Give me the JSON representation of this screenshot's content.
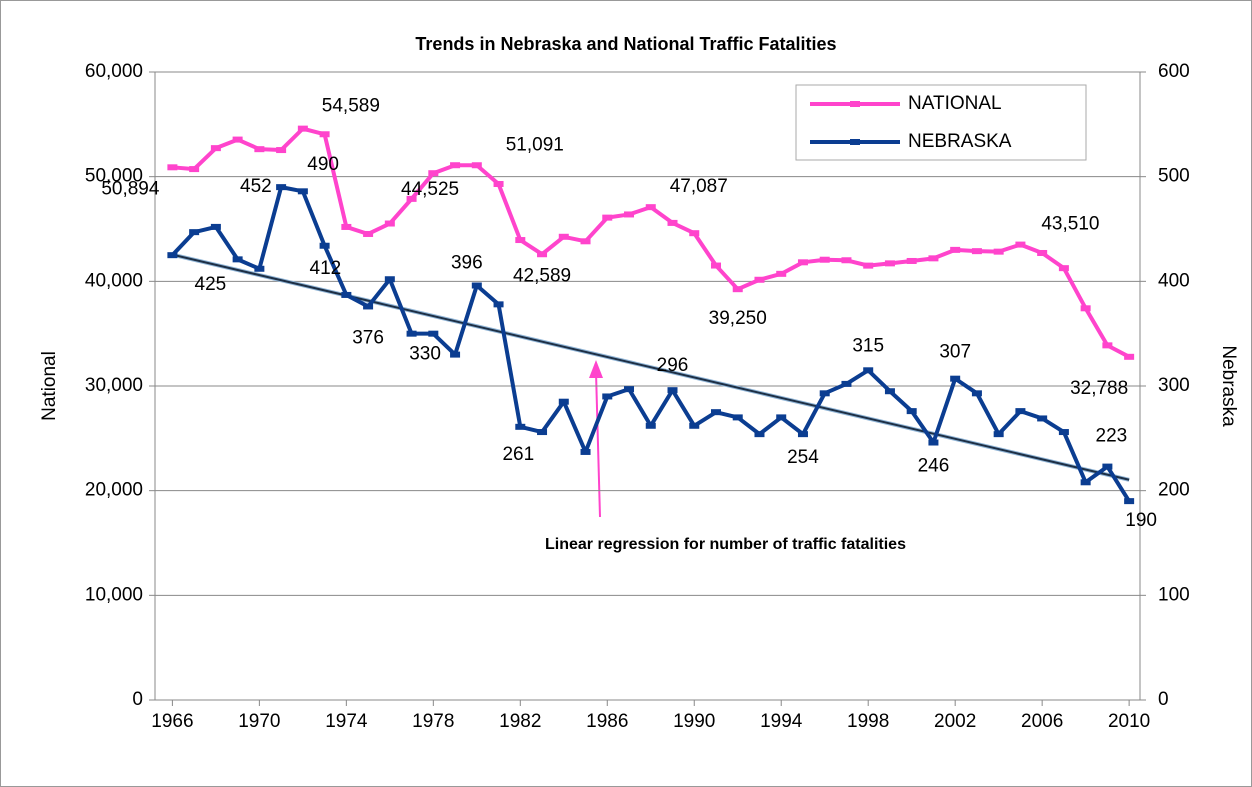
{
  "chart_data": {
    "type": "line",
    "title": "Trends in Nebraska and National Traffic Fatalities",
    "y_label": "National",
    "y2_label": "Nebraska",
    "annotation": "Linear regression for number of traffic fatalities",
    "x": [
      1966,
      1967,
      1968,
      1969,
      1970,
      1971,
      1972,
      1973,
      1974,
      1975,
      1976,
      1977,
      1978,
      1979,
      1980,
      1981,
      1982,
      1983,
      1984,
      1985,
      1986,
      1987,
      1988,
      1989,
      1990,
      1991,
      1992,
      1993,
      1994,
      1995,
      1996,
      1997,
      1998,
      1999,
      2000,
      2001,
      2002,
      2003,
      2004,
      2005,
      2006,
      2007,
      2008,
      2009,
      2010
    ],
    "xlim": [
      1965.2,
      2010.5
    ],
    "xticks": [
      1966,
      1970,
      1974,
      1978,
      1982,
      1986,
      1990,
      1994,
      1998,
      2002,
      2006,
      2010
    ],
    "ylim": [
      0,
      60000
    ],
    "yticks": [
      0,
      {
        "value": 10000,
        "label": "10,000"
      },
      {
        "value": 20000,
        "label": "20,000"
      },
      {
        "value": 30000,
        "label": "30,000"
      },
      {
        "value": 40000,
        "label": "40,000"
      },
      {
        "value": 50000,
        "label": "50,000"
      },
      {
        "value": 60000,
        "label": "60,000"
      }
    ],
    "y2lim": [
      0,
      600
    ],
    "y2ticks": [
      0,
      100,
      200,
      300,
      400,
      500,
      600
    ],
    "grid": true,
    "legend": "top-right",
    "series": [
      {
        "name": "NATIONAL",
        "color": "#ff44cc",
        "values": [
          50894,
          50724,
          52725,
          53543,
          52627,
          52542,
          54589,
          54052,
          45196,
          44525,
          45523,
          47878,
          50331,
          51093,
          51091,
          49301,
          43945,
          42589,
          44257,
          43825,
          46087,
          46390,
          47087,
          45582,
          44599,
          41508,
          39250,
          40150,
          40716,
          41817,
          42065,
          42013,
          41501,
          41717,
          41945,
          42196,
          43005,
          42884,
          42836,
          43510,
          42708,
          41259,
          37423,
          33883,
          32788
        ],
        "value_labels": [
          "50,894",
          null,
          null,
          null,
          null,
          null,
          "54,589",
          null,
          null,
          "44,525",
          null,
          null,
          null,
          null,
          "51,091",
          null,
          null,
          "42,589",
          null,
          null,
          null,
          null,
          "47,087",
          null,
          null,
          null,
          "39,250",
          null,
          null,
          null,
          null,
          null,
          null,
          null,
          null,
          null,
          null,
          null,
          null,
          "43,510",
          null,
          null,
          null,
          null,
          "32,788"
        ]
      },
      {
        "name": "NEBRASKA",
        "color": "#0b3d91",
        "axis": "y2",
        "values": [
          425,
          447,
          452,
          421,
          412,
          490,
          486,
          434,
          387,
          376,
          402,
          350,
          350,
          330,
          396,
          378,
          261,
          256,
          285,
          237,
          290,
          297,
          262,
          296,
          262,
          275,
          270,
          254,
          270,
          254,
          293,
          302,
          315,
          295,
          276,
          246,
          307,
          293,
          254,
          276,
          269,
          256,
          208,
          223,
          190
        ],
        "value_labels": [
          "425",
          null,
          "452",
          null,
          "412",
          "490",
          null,
          null,
          null,
          "376",
          null,
          null,
          null,
          "330",
          "396",
          null,
          "261",
          null,
          null,
          null,
          null,
          null,
          null,
          "296",
          null,
          null,
          null,
          null,
          null,
          "254",
          null,
          null,
          "315",
          null,
          null,
          "246",
          "307",
          null,
          null,
          null,
          null,
          null,
          null,
          "223",
          "190"
        ]
      }
    ]
  }
}
